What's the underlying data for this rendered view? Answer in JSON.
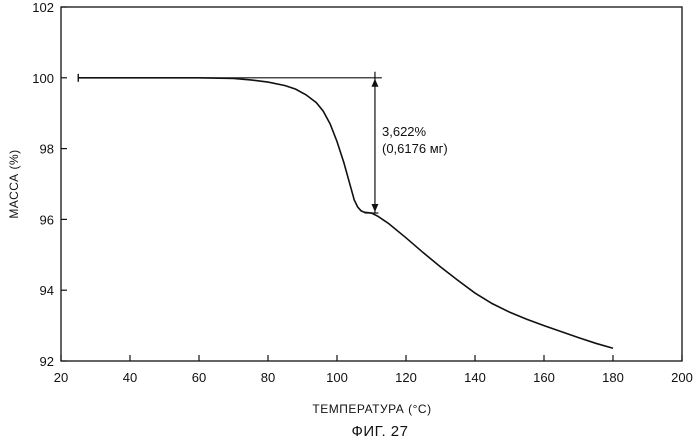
{
  "chart_data": {
    "type": "line",
    "title": "",
    "xlabel": "ТЕМПЕРАТУРА (°C)",
    "ylabel": "МАССА (%)",
    "xlim": [
      20,
      200
    ],
    "ylim": [
      92,
      102
    ],
    "x_ticks": [
      20,
      40,
      60,
      80,
      100,
      120,
      140,
      160,
      180,
      200
    ],
    "y_ticks": [
      92,
      94,
      96,
      98,
      100,
      102
    ],
    "grid": false,
    "series": [
      {
        "x": [
          25,
          40,
          50,
          60,
          70,
          75,
          80,
          85,
          88,
          91,
          94,
          96,
          98,
          100,
          102,
          104,
          105,
          106,
          107,
          108,
          110,
          112,
          115,
          120,
          125,
          130,
          135,
          140,
          145,
          150,
          155,
          160,
          165,
          170,
          175,
          180
        ],
        "y": [
          100.0,
          100.0,
          100.0,
          100.0,
          99.98,
          99.94,
          99.88,
          99.78,
          99.68,
          99.52,
          99.3,
          99.06,
          98.7,
          98.2,
          97.6,
          96.9,
          96.55,
          96.35,
          96.24,
          96.2,
          96.18,
          96.08,
          95.88,
          95.48,
          95.06,
          94.66,
          94.28,
          93.92,
          93.62,
          93.38,
          93.18,
          93.0,
          92.83,
          92.66,
          92.5,
          92.36
        ]
      }
    ],
    "annotations": {
      "baseline_y": 100.0,
      "baseline_x": [
        25,
        113
      ],
      "step_x": 111,
      "step_from_y": 100.0,
      "step_to_y": 96.18,
      "marker_y": 96.18,
      "marker_x": [
        108,
        112
      ],
      "text_line1": "3,622%",
      "text_line2": "(0,6176 мг)"
    }
  },
  "figure_caption": "ФИГ. 27"
}
